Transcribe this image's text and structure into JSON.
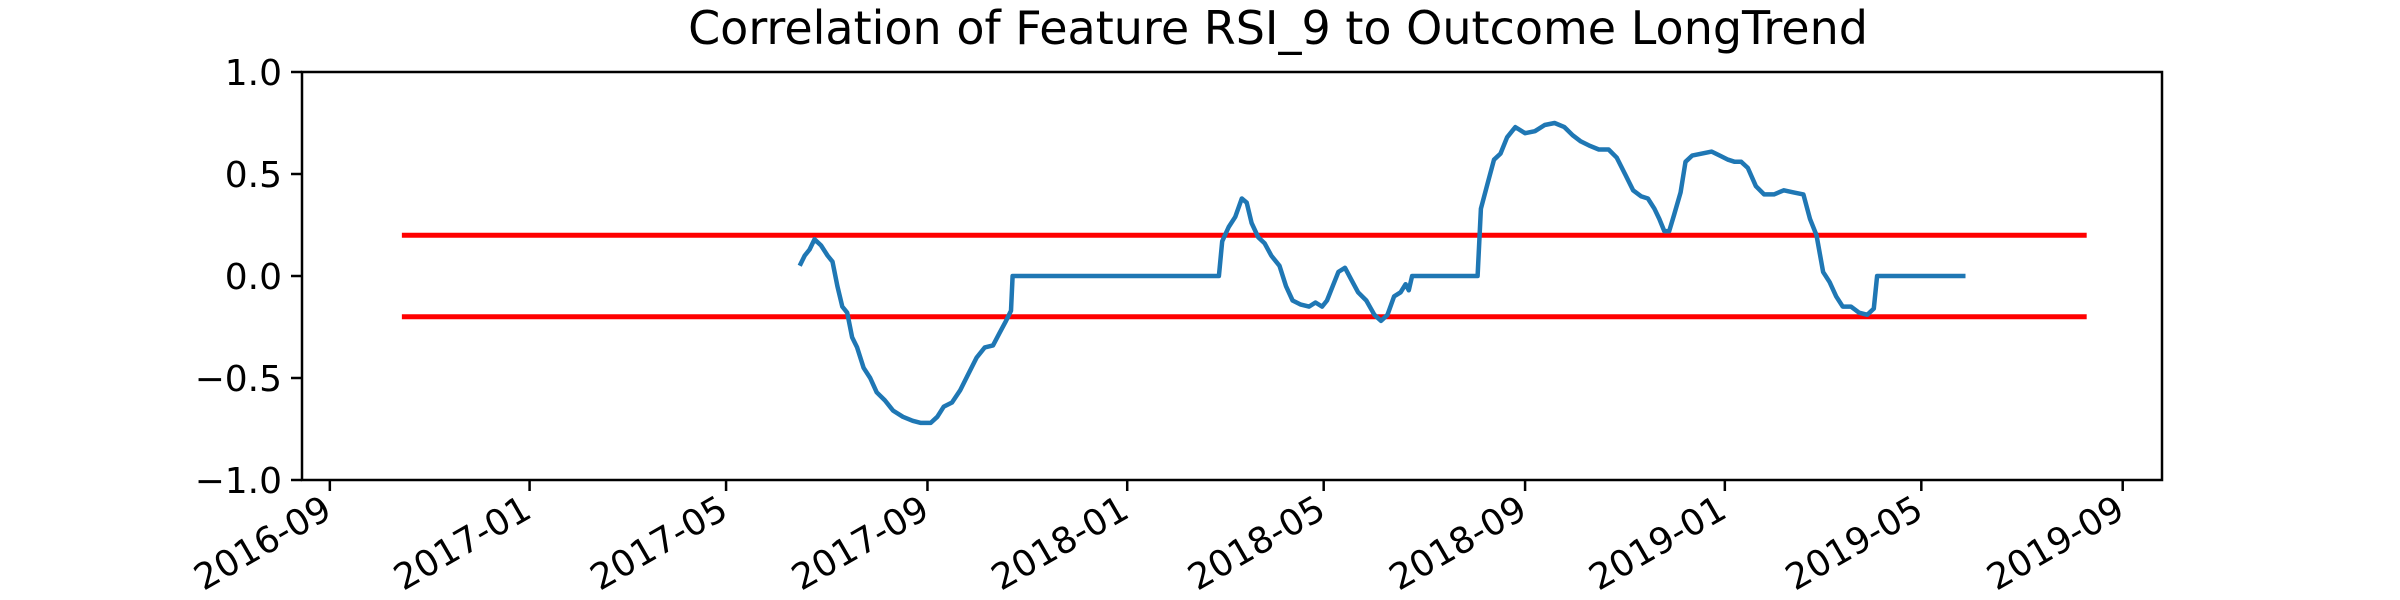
{
  "chart_data": {
    "type": "line",
    "title": "Correlation of Feature RSI_9 to Outcome LongTrend",
    "xlabel": "",
    "ylabel": "",
    "xlim": [
      "2016-08-15",
      "2019-09-25"
    ],
    "ylim": [
      -1.0,
      1.0
    ],
    "x_ticks": [
      "2016-09",
      "2017-01",
      "2017-05",
      "2017-09",
      "2018-01",
      "2018-05",
      "2018-09",
      "2019-01",
      "2019-05",
      "2019-09"
    ],
    "y_ticks": [
      "1.0",
      "0.5",
      "0.0",
      "−0.5",
      "−1.0"
    ],
    "y_tick_values": [
      1.0,
      0.5,
      0.0,
      -0.5,
      -1.0
    ],
    "grid": false,
    "legend": "none",
    "series": [
      {
        "color": "#1f77b4",
        "points": [
          [
            "2017-06-15",
            0.05
          ],
          [
            "2017-06-18",
            0.1
          ],
          [
            "2017-06-21",
            0.13
          ],
          [
            "2017-06-24",
            0.18
          ],
          [
            "2017-06-28",
            0.15
          ],
          [
            "2017-07-02",
            0.1
          ],
          [
            "2017-07-05",
            0.07
          ],
          [
            "2017-07-08",
            -0.05
          ],
          [
            "2017-07-11",
            -0.15
          ],
          [
            "2017-07-14",
            -0.18
          ],
          [
            "2017-07-17",
            -0.3
          ],
          [
            "2017-07-20",
            -0.35
          ],
          [
            "2017-07-24",
            -0.45
          ],
          [
            "2017-07-28",
            -0.5
          ],
          [
            "2017-08-01",
            -0.57
          ],
          [
            "2017-08-06",
            -0.61
          ],
          [
            "2017-08-11",
            -0.66
          ],
          [
            "2017-08-17",
            -0.69
          ],
          [
            "2017-08-23",
            -0.71
          ],
          [
            "2017-08-28",
            -0.72
          ],
          [
            "2017-09-03",
            -0.72
          ],
          [
            "2017-09-07",
            -0.69
          ],
          [
            "2017-09-11",
            -0.64
          ],
          [
            "2017-09-16",
            -0.62
          ],
          [
            "2017-09-21",
            -0.56
          ],
          [
            "2017-09-26",
            -0.48
          ],
          [
            "2017-10-01",
            -0.4
          ],
          [
            "2017-10-06",
            -0.35
          ],
          [
            "2017-10-11",
            -0.34
          ],
          [
            "2017-10-15",
            -0.28
          ],
          [
            "2017-10-19",
            -0.22
          ],
          [
            "2017-10-22",
            -0.17
          ],
          [
            "2017-10-23",
            0.0
          ],
          [
            "2018-02-26",
            0.0
          ],
          [
            "2018-02-28",
            0.17
          ],
          [
            "2018-03-04",
            0.24
          ],
          [
            "2018-03-08",
            0.29
          ],
          [
            "2018-03-12",
            0.38
          ],
          [
            "2018-03-15",
            0.36
          ],
          [
            "2018-03-18",
            0.26
          ],
          [
            "2018-03-22",
            0.19
          ],
          [
            "2018-03-26",
            0.16
          ],
          [
            "2018-03-30",
            0.1
          ],
          [
            "2018-04-04",
            0.05
          ],
          [
            "2018-04-08",
            -0.05
          ],
          [
            "2018-04-12",
            -0.12
          ],
          [
            "2018-04-17",
            -0.14
          ],
          [
            "2018-04-22",
            -0.15
          ],
          [
            "2018-04-26",
            -0.13
          ],
          [
            "2018-04-30",
            -0.15
          ],
          [
            "2018-05-03",
            -0.12
          ],
          [
            "2018-05-06",
            -0.06
          ],
          [
            "2018-05-10",
            0.02
          ],
          [
            "2018-05-14",
            0.04
          ],
          [
            "2018-05-18",
            -0.02
          ],
          [
            "2018-05-22",
            -0.08
          ],
          [
            "2018-05-27",
            -0.12
          ],
          [
            "2018-06-01",
            -0.19
          ],
          [
            "2018-06-05",
            -0.22
          ],
          [
            "2018-06-09",
            -0.19
          ],
          [
            "2018-06-13",
            -0.1
          ],
          [
            "2018-06-17",
            -0.08
          ],
          [
            "2018-06-20",
            -0.04
          ],
          [
            "2018-06-22",
            -0.07
          ],
          [
            "2018-06-24",
            0.0
          ],
          [
            "2018-08-03",
            0.0
          ],
          [
            "2018-08-05",
            0.33
          ],
          [
            "2018-08-09",
            0.45
          ],
          [
            "2018-08-13",
            0.57
          ],
          [
            "2018-08-17",
            0.6
          ],
          [
            "2018-08-21",
            0.68
          ],
          [
            "2018-08-26",
            0.73
          ],
          [
            "2018-09-01",
            0.7
          ],
          [
            "2018-09-07",
            0.71
          ],
          [
            "2018-09-13",
            0.74
          ],
          [
            "2018-09-19",
            0.75
          ],
          [
            "2018-09-25",
            0.73
          ],
          [
            "2018-09-30",
            0.69
          ],
          [
            "2018-10-05",
            0.66
          ],
          [
            "2018-10-10",
            0.64
          ],
          [
            "2018-10-16",
            0.62
          ],
          [
            "2018-10-22",
            0.62
          ],
          [
            "2018-10-27",
            0.58
          ],
          [
            "2018-11-01",
            0.5
          ],
          [
            "2018-11-06",
            0.42
          ],
          [
            "2018-11-11",
            0.39
          ],
          [
            "2018-11-15",
            0.38
          ],
          [
            "2018-11-19",
            0.33
          ],
          [
            "2018-11-22",
            0.28
          ],
          [
            "2018-11-25",
            0.22
          ],
          [
            "2018-11-28",
            0.22
          ],
          [
            "2018-12-01",
            0.3
          ],
          [
            "2018-12-05",
            0.41
          ],
          [
            "2018-12-08",
            0.56
          ],
          [
            "2018-12-12",
            0.59
          ],
          [
            "2018-12-18",
            0.6
          ],
          [
            "2018-12-24",
            0.61
          ],
          [
            "2018-12-29",
            0.59
          ],
          [
            "2019-01-03",
            0.57
          ],
          [
            "2019-01-07",
            0.56
          ],
          [
            "2019-01-11",
            0.56
          ],
          [
            "2019-01-15",
            0.53
          ],
          [
            "2019-01-20",
            0.44
          ],
          [
            "2019-01-25",
            0.4
          ],
          [
            "2019-01-31",
            0.4
          ],
          [
            "2019-02-06",
            0.42
          ],
          [
            "2019-02-12",
            0.41
          ],
          [
            "2019-02-18",
            0.4
          ],
          [
            "2019-02-22",
            0.28
          ],
          [
            "2019-02-26",
            0.2
          ],
          [
            "2019-03-02",
            0.02
          ],
          [
            "2019-03-06",
            -0.03
          ],
          [
            "2019-03-10",
            -0.1
          ],
          [
            "2019-03-14",
            -0.15
          ],
          [
            "2019-03-19",
            -0.15
          ],
          [
            "2019-03-24",
            -0.18
          ],
          [
            "2019-03-29",
            -0.19
          ],
          [
            "2019-04-02",
            -0.16
          ],
          [
            "2019-04-04",
            0.0
          ],
          [
            "2019-05-28",
            0.0
          ]
        ]
      }
    ],
    "reference_lines": [
      {
        "y": 0.2,
        "x_start": "2016-10-15",
        "x_end": "2019-08-10",
        "color": "#ff0000"
      },
      {
        "y": -0.2,
        "x_start": "2016-10-15",
        "x_end": "2019-08-10",
        "color": "#ff0000"
      }
    ]
  }
}
